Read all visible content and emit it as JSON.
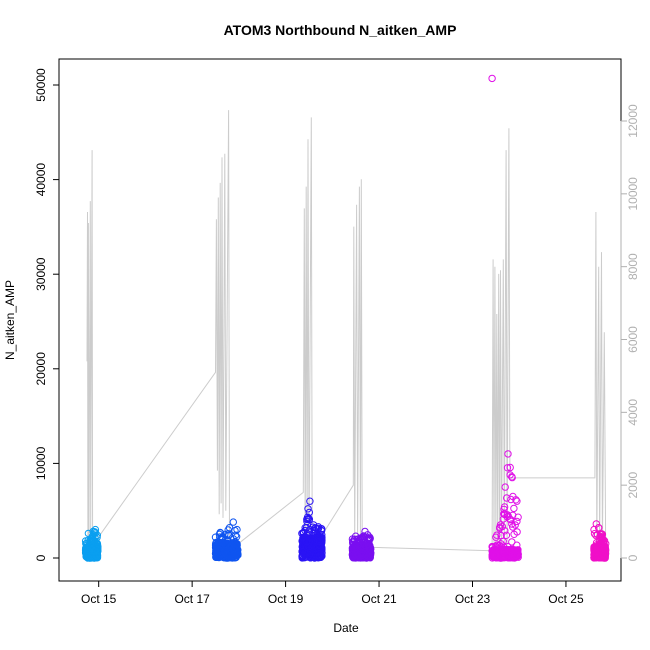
{
  "chart_data": {
    "type": "scatter",
    "title": "ATOM3 Northbound N_aitken_AMP",
    "xlabel": "Date",
    "ylabel": "N_aitken_AMP",
    "x_range_days": [
      14.6,
      25.9
    ],
    "ylim": [
      0,
      52500
    ],
    "y2lim": [
      0,
      12800
    ],
    "x_ticks": [
      {
        "day": 15,
        "label": "Oct 15"
      },
      {
        "day": 17,
        "label": "Oct 17"
      },
      {
        "day": 19,
        "label": "Oct 19"
      },
      {
        "day": 21,
        "label": "Oct 21"
      },
      {
        "day": 23,
        "label": "Oct 23"
      },
      {
        "day": 25,
        "label": "Oct 25"
      }
    ],
    "y_ticks": [
      0,
      10000,
      20000,
      30000,
      40000,
      50000
    ],
    "y2_ticks": [
      0,
      2000,
      4000,
      6000,
      8000,
      10000,
      12000
    ],
    "series": [
      {
        "kind": "points",
        "color": "#0a9ff0",
        "x_start": 14.72,
        "x_end": 14.98,
        "y_base_max": 1200,
        "y_peak": 3000,
        "upper_envelope": [
          [
            14.72,
            1800
          ],
          [
            14.78,
            2600
          ],
          [
            14.83,
            1900
          ],
          [
            14.88,
            2800
          ],
          [
            14.93,
            3000
          ],
          [
            14.97,
            2400
          ]
        ]
      },
      {
        "kind": "points",
        "color": "#0f55f0",
        "x_start": 17.5,
        "x_end": 17.98,
        "y_base_max": 1600,
        "y_peak": 3800,
        "upper_envelope": [
          [
            17.5,
            2200
          ],
          [
            17.6,
            2700
          ],
          [
            17.7,
            2500
          ],
          [
            17.8,
            3200
          ],
          [
            17.88,
            3800
          ],
          [
            17.96,
            3000
          ]
        ]
      },
      {
        "kind": "points",
        "color": "#2a14f5",
        "x_start": 19.35,
        "x_end": 19.78,
        "y_base_max": 2200,
        "y_peak": 6000,
        "upper_envelope": [
          [
            19.35,
            2600
          ],
          [
            19.42,
            3200
          ],
          [
            19.48,
            5200
          ],
          [
            19.52,
            6000
          ],
          [
            19.6,
            3500
          ],
          [
            19.7,
            3300
          ],
          [
            19.77,
            3100
          ]
        ]
      },
      {
        "kind": "points",
        "color": "#7a0ff0",
        "x_start": 20.43,
        "x_end": 20.82,
        "y_base_max": 1300,
        "y_peak": 2800,
        "upper_envelope": [
          [
            20.43,
            2000
          ],
          [
            20.5,
            2300
          ],
          [
            20.6,
            2100
          ],
          [
            20.7,
            2800
          ],
          [
            20.8,
            2200
          ]
        ]
      },
      {
        "kind": "points",
        "color": "#e010e8",
        "x_start": 23.42,
        "x_end": 23.98,
        "y_base_max": 900,
        "y_peak": 11000,
        "upper_envelope": [
          [
            23.42,
            1200
          ],
          [
            23.5,
            2200
          ],
          [
            23.6,
            3500
          ],
          [
            23.7,
            7500
          ],
          [
            23.76,
            11000
          ],
          [
            23.85,
            8500
          ],
          [
            23.95,
            6000
          ]
        ],
        "outliers": [
          [
            23.42,
            50700
          ]
        ]
      },
      {
        "kind": "points",
        "color": "#f010c8",
        "x_start": 25.6,
        "x_end": 25.85,
        "y_base_max": 1200,
        "y_peak": 3600,
        "upper_envelope": [
          [
            25.6,
            3000
          ],
          [
            25.65,
            3600
          ],
          [
            25.7,
            3200
          ],
          [
            25.78,
            2500
          ],
          [
            25.85,
            1500
          ]
        ]
      },
      {
        "kind": "line",
        "axis": "right",
        "color": "#cccccc",
        "points": [
          [
            14.75,
            5400
          ],
          [
            14.76,
            9500
          ],
          [
            14.77,
            400
          ],
          [
            14.78,
            9200
          ],
          [
            14.79,
            300
          ],
          [
            14.82,
            9800
          ],
          [
            14.83,
            500
          ],
          [
            14.86,
            11200
          ],
          [
            14.87,
            300
          ],
          [
            14.9,
            400
          ],
          [
            17.5,
            5100
          ],
          [
            17.52,
            9300
          ],
          [
            17.54,
            2400
          ],
          [
            17.56,
            9900
          ],
          [
            17.58,
            1200
          ],
          [
            17.6,
            10300
          ],
          [
            17.62,
            1500
          ],
          [
            17.64,
            11000
          ],
          [
            17.66,
            1100
          ],
          [
            17.7,
            11100
          ],
          [
            17.72,
            1300
          ],
          [
            17.78,
            12300
          ],
          [
            17.8,
            200
          ],
          [
            19.38,
            1800
          ],
          [
            19.4,
            9600
          ],
          [
            19.42,
            500
          ],
          [
            19.44,
            10200
          ],
          [
            19.46,
            600
          ],
          [
            19.48,
            11500
          ],
          [
            19.5,
            300
          ],
          [
            19.55,
            12100
          ],
          [
            19.57,
            300
          ],
          [
            19.62,
            300
          ],
          [
            20.45,
            2000
          ],
          [
            20.46,
            9100
          ],
          [
            20.48,
            500
          ],
          [
            20.52,
            9700
          ],
          [
            20.54,
            400
          ],
          [
            20.58,
            10200
          ],
          [
            20.6,
            600
          ],
          [
            20.62,
            10400
          ],
          [
            20.64,
            300
          ],
          [
            20.68,
            300
          ],
          [
            23.42,
            200
          ],
          [
            23.44,
            8200
          ],
          [
            23.46,
            300
          ],
          [
            23.48,
            8000
          ],
          [
            23.5,
            400
          ],
          [
            23.52,
            6700
          ],
          [
            23.54,
            300
          ],
          [
            23.56,
            7800
          ],
          [
            23.58,
            300
          ],
          [
            23.6,
            7900
          ],
          [
            23.62,
            400
          ],
          [
            23.66,
            8200
          ],
          [
            23.68,
            300
          ],
          [
            23.72,
            11200
          ],
          [
            23.74,
            200
          ],
          [
            23.78,
            11800
          ],
          [
            23.8,
            2200
          ],
          [
            25.62,
            2200
          ],
          [
            25.64,
            9500
          ],
          [
            25.66,
            300
          ],
          [
            25.7,
            8000
          ],
          [
            25.72,
            200
          ],
          [
            25.76,
            8400
          ],
          [
            25.78,
            300
          ],
          [
            25.82,
            6200
          ],
          [
            25.85,
            150
          ]
        ]
      }
    ]
  }
}
